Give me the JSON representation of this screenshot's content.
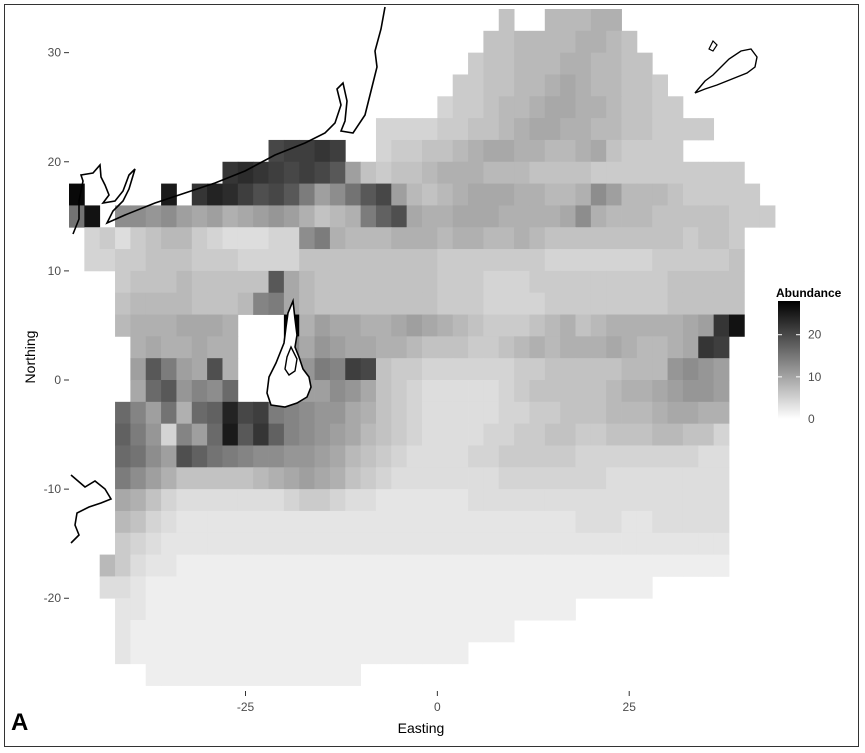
{
  "chart_data": {
    "type": "heatmap",
    "panel_label": "A",
    "xlabel": "Easting",
    "ylabel": "Northing",
    "xlim": [
      -48,
      41
    ],
    "ylim": [
      -28.5,
      34
    ],
    "x_ticks": [
      -25,
      0,
      25
    ],
    "y_ticks": [
      -20,
      -10,
      0,
      10,
      20,
      30
    ],
    "x_tick_labels": [
      "-25",
      "0",
      "25"
    ],
    "y_tick_labels": [
      "-20",
      "-10",
      "0",
      "10",
      "20",
      "30"
    ],
    "grid": false,
    "cell_size": 2,
    "colors": {
      "low": "#ffffff",
      "high": "#000000",
      "coastline": "#000000",
      "background": "#ffffff"
    },
    "legend": {
      "title": "Abundance",
      "position": "right",
      "range": [
        0,
        28
      ],
      "ticks": [
        0,
        10,
        20
      ],
      "tick_labels": [
        "0",
        "10",
        "20"
      ]
    },
    "grid_rows": [
      {
        "y": 33,
        "x_start": 9,
        "values": [
          6,
          0,
          0,
          7,
          7,
          7,
          8,
          8
        ]
      },
      {
        "y": 31,
        "x_start": 7,
        "values": [
          6,
          6,
          7,
          7,
          7,
          7,
          8,
          8,
          7,
          6
        ]
      },
      {
        "y": 29,
        "x_start": 5,
        "values": [
          5,
          6,
          6,
          7,
          7,
          7,
          8,
          8,
          7,
          7,
          6,
          6
        ]
      },
      {
        "y": 27,
        "x_start": 3,
        "values": [
          5,
          5,
          6,
          6,
          7,
          7,
          8,
          9,
          8,
          7,
          7,
          6,
          6,
          5
        ]
      },
      {
        "y": 25,
        "x_start": 1,
        "values": [
          4,
          5,
          5,
          6,
          7,
          7,
          8,
          9,
          9,
          8,
          8,
          7,
          6,
          6,
          5,
          5
        ]
      },
      {
        "y": 23,
        "x_start": -7,
        "values": [
          4,
          4,
          4,
          4,
          5,
          5,
          6,
          6,
          7,
          8,
          9,
          9,
          8,
          8,
          7,
          7,
          6,
          6,
          5,
          5,
          5,
          5
        ]
      },
      {
        "y": 21,
        "x_start": -21,
        "values": [
          20,
          21,
          21,
          22,
          21,
          0,
          0,
          4,
          5,
          5,
          6,
          6,
          7,
          8,
          9,
          9,
          8,
          8,
          7,
          7,
          8,
          9,
          6,
          5,
          5,
          5,
          5
        ]
      },
      {
        "y": 19,
        "x_start": -27,
        "values": [
          22,
          23,
          22,
          21,
          20,
          21,
          20,
          18,
          10,
          6,
          5,
          6,
          6,
          7,
          8,
          8,
          8,
          7,
          7,
          7,
          6,
          6,
          6,
          6,
          5,
          5,
          5,
          5,
          5,
          5,
          5,
          5,
          5,
          5
        ]
      },
      {
        "y": 17,
        "x_start": -47,
        "values": [
          27,
          0,
          0,
          0,
          0,
          0,
          25,
          0,
          22,
          24,
          23,
          21,
          19,
          20,
          18,
          14,
          10,
          12,
          15,
          18,
          20,
          10,
          7,
          6,
          7,
          8,
          9,
          9,
          9,
          8,
          8,
          7,
          7,
          8,
          12,
          10,
          7,
          7,
          7,
          6,
          5,
          5,
          5,
          5,
          5
        ]
      },
      {
        "y": 15,
        "x_start": -47,
        "values": [
          15,
          26,
          0,
          12,
          12,
          11,
          12,
          10,
          9,
          10,
          8,
          9,
          10,
          11,
          10,
          8,
          6,
          7,
          8,
          14,
          17,
          19,
          9,
          8,
          8,
          9,
          9,
          9,
          8,
          8,
          8,
          8,
          9,
          12,
          8,
          7,
          7,
          7,
          6,
          6,
          6,
          6,
          6,
          5,
          5,
          5
        ]
      },
      {
        "y": 13,
        "x_start": -45,
        "values": [
          4,
          5,
          3,
          5,
          6,
          7,
          7,
          5,
          4,
          3,
          3,
          3,
          4,
          4,
          12,
          14,
          8,
          7,
          7,
          7,
          8,
          8,
          8,
          7,
          8,
          8,
          7,
          7,
          8,
          7,
          6,
          6,
          6,
          6,
          6,
          6,
          6,
          6,
          6,
          5,
          6,
          6,
          5
        ]
      },
      {
        "y": 11,
        "x_start": -45,
        "values": [
          4,
          4,
          5,
          5,
          6,
          6,
          6,
          5,
          5,
          5,
          4,
          4,
          4,
          4,
          6,
          6,
          6,
          6,
          6,
          6,
          6,
          6,
          6,
          5,
          5,
          5,
          5,
          5,
          5,
          5,
          4,
          4,
          4,
          4,
          4,
          4,
          4,
          5,
          5,
          5,
          5,
          5,
          6
        ]
      },
      {
        "y": 9,
        "x_start": -41,
        "values": [
          5,
          6,
          6,
          6,
          7,
          6,
          6,
          6,
          6,
          6,
          18,
          9,
          7,
          6,
          6,
          6,
          6,
          6,
          6,
          6,
          6,
          5,
          5,
          5,
          4,
          4,
          4,
          5,
          5,
          5,
          5,
          5,
          5,
          5,
          5,
          5,
          6,
          6,
          6,
          6,
          6
        ]
      },
      {
        "y": 7,
        "x_start": -41,
        "values": [
          6,
          7,
          7,
          7,
          7,
          6,
          6,
          6,
          7,
          13,
          14,
          9,
          7,
          6,
          6,
          6,
          6,
          6,
          6,
          6,
          6,
          5,
          5,
          5,
          4,
          4,
          4,
          4,
          5,
          5,
          5,
          5,
          5,
          5,
          5,
          5,
          6,
          6,
          6,
          6,
          6
        ]
      },
      {
        "y": 5,
        "x_start": -41,
        "values": [
          7,
          8,
          8,
          8,
          9,
          9,
          9,
          8,
          0,
          0,
          0,
          28,
          8,
          10,
          9,
          9,
          8,
          8,
          9,
          10,
          9,
          8,
          7,
          6,
          5,
          5,
          5,
          6,
          7,
          8,
          6,
          7,
          8,
          8,
          8,
          8,
          8,
          9,
          10,
          22,
          26
        ]
      },
      {
        "y": 3,
        "x_start": -39,
        "values": [
          8,
          9,
          8,
          8,
          9,
          8,
          8,
          0,
          0,
          0,
          12,
          9,
          11,
          10,
          9,
          9,
          8,
          8,
          7,
          6,
          6,
          6,
          5,
          5,
          6,
          7,
          8,
          7,
          8,
          8,
          8,
          9,
          8,
          7,
          7,
          8,
          9,
          22,
          21
        ]
      },
      {
        "y": 1,
        "x_start": -39,
        "values": [
          10,
          18,
          14,
          10,
          9,
          19,
          8,
          0,
          0,
          0,
          13,
          11,
          14,
          13,
          21,
          20,
          6,
          5,
          5,
          4,
          4,
          4,
          4,
          4,
          4,
          5,
          5,
          6,
          6,
          6,
          6,
          6,
          7,
          7,
          7,
          11,
          12,
          11,
          10
        ]
      },
      {
        "y": -1,
        "x_start": -39,
        "values": [
          9,
          16,
          18,
          11,
          13,
          12,
          16,
          0,
          0,
          0,
          12,
          10,
          10,
          12,
          11,
          9,
          6,
          5,
          4,
          3,
          3,
          3,
          3,
          3,
          4,
          5,
          6,
          6,
          6,
          6,
          6,
          7,
          8,
          8,
          9,
          10,
          11,
          11,
          10
        ]
      },
      {
        "y": -3,
        "x_start": -41,
        "values": [
          16,
          13,
          10,
          15,
          8,
          16,
          17,
          24,
          20,
          21,
          14,
          13,
          12,
          11,
          11,
          9,
          8,
          6,
          5,
          4,
          3,
          3,
          3,
          3,
          3,
          4,
          4,
          5,
          5,
          6,
          6,
          6,
          7,
          7,
          7,
          8,
          9,
          9,
          8,
          8
        ]
      },
      {
        "y": -5,
        "x_start": -41,
        "values": [
          17,
          14,
          11,
          4,
          13,
          10,
          16,
          25,
          18,
          22,
          17,
          13,
          12,
          11,
          10,
          9,
          7,
          6,
          5,
          4,
          3,
          3,
          3,
          3,
          4,
          4,
          5,
          5,
          6,
          6,
          5,
          5,
          6,
          6,
          6,
          7,
          7,
          6,
          6,
          4
        ]
      },
      {
        "y": -7,
        "x_start": -41,
        "values": [
          16,
          15,
          12,
          10,
          19,
          17,
          15,
          14,
          13,
          12,
          12,
          11,
          11,
          10,
          9,
          7,
          6,
          5,
          4,
          3,
          3,
          3,
          3,
          4,
          4,
          5,
          5,
          5,
          5,
          5,
          4,
          4,
          4,
          4,
          4,
          4,
          4,
          4,
          3,
          3
        ]
      },
      {
        "y": -9,
        "x_start": -41,
        "values": [
          14,
          12,
          10,
          8,
          6,
          6,
          6,
          6,
          6,
          7,
          8,
          9,
          10,
          9,
          8,
          6,
          5,
          4,
          3,
          3,
          3,
          3,
          3,
          3,
          3,
          4,
          4,
          4,
          4,
          4,
          4,
          4,
          3,
          3,
          3,
          3,
          3,
          3,
          3,
          3
        ]
      },
      {
        "y": -11,
        "x_start": -41,
        "values": [
          9,
          8,
          6,
          4,
          3,
          3,
          3,
          3,
          3,
          3,
          3,
          4,
          5,
          5,
          4,
          3,
          3,
          2,
          2,
          2,
          2,
          2,
          2,
          3,
          3,
          3,
          3,
          3,
          3,
          3,
          3,
          3,
          3,
          3,
          3,
          3,
          3,
          3,
          3,
          3
        ]
      },
      {
        "y": -13,
        "x_start": -41,
        "values": [
          7,
          6,
          4,
          3,
          2,
          2,
          2,
          2,
          2,
          2,
          2,
          2,
          2,
          2,
          2,
          2,
          2,
          2,
          2,
          2,
          2,
          2,
          2,
          2,
          2,
          2,
          2,
          2,
          2,
          2,
          3,
          3,
          3,
          2,
          2,
          3,
          3,
          3,
          3,
          3
        ]
      },
      {
        "y": -15,
        "x_start": -41,
        "values": [
          5,
          4,
          3,
          2,
          2,
          2,
          2,
          2,
          2,
          2,
          2,
          2,
          2,
          2,
          2,
          2,
          2,
          2,
          2,
          2,
          2,
          2,
          2,
          2,
          2,
          2,
          2,
          2,
          2,
          2,
          2,
          2,
          2,
          2,
          2,
          2,
          2,
          2,
          2,
          2
        ]
      },
      {
        "y": -17,
        "x_start": -43,
        "values": [
          7,
          5,
          3,
          2,
          2,
          1,
          1,
          1,
          1,
          1,
          1,
          1,
          1,
          1,
          1,
          1,
          1,
          1,
          1,
          1,
          1,
          1,
          1,
          1,
          1,
          1,
          1,
          1,
          1,
          1,
          1,
          1,
          1,
          1,
          1,
          1,
          1,
          1,
          1,
          1,
          1
        ]
      },
      {
        "y": -19,
        "x_start": -43,
        "values": [
          3,
          3,
          2,
          1,
          1,
          1,
          1,
          1,
          1,
          1,
          1,
          1,
          1,
          1,
          1,
          1,
          1,
          1,
          1,
          1,
          1,
          1,
          1,
          1,
          1,
          1,
          1,
          1,
          1,
          1,
          1,
          1,
          1,
          1,
          1,
          1
        ]
      },
      {
        "y": -21,
        "x_start": -41,
        "values": [
          2,
          2,
          1,
          1,
          1,
          1,
          1,
          1,
          1,
          1,
          1,
          1,
          1,
          1,
          1,
          1,
          1,
          1,
          1,
          1,
          1,
          1,
          1,
          1,
          1,
          1,
          1,
          1,
          1,
          1
        ]
      },
      {
        "y": -23,
        "x_start": -41,
        "values": [
          2,
          1,
          1,
          1,
          1,
          1,
          1,
          1,
          1,
          1,
          1,
          1,
          1,
          1,
          1,
          1,
          1,
          1,
          1,
          1,
          1,
          1,
          1,
          1,
          1,
          1
        ]
      },
      {
        "y": -25,
        "x_start": -41,
        "values": [
          2,
          1,
          1,
          1,
          1,
          1,
          1,
          1,
          1,
          1,
          1,
          1,
          1,
          1,
          1,
          1,
          1,
          1,
          1,
          1,
          1,
          1,
          1
        ]
      },
      {
        "y": -27,
        "x_start": -37,
        "values": [
          1,
          1,
          1,
          1,
          1,
          1,
          1,
          1,
          1,
          1,
          1,
          1,
          1,
          1
        ]
      }
    ]
  }
}
